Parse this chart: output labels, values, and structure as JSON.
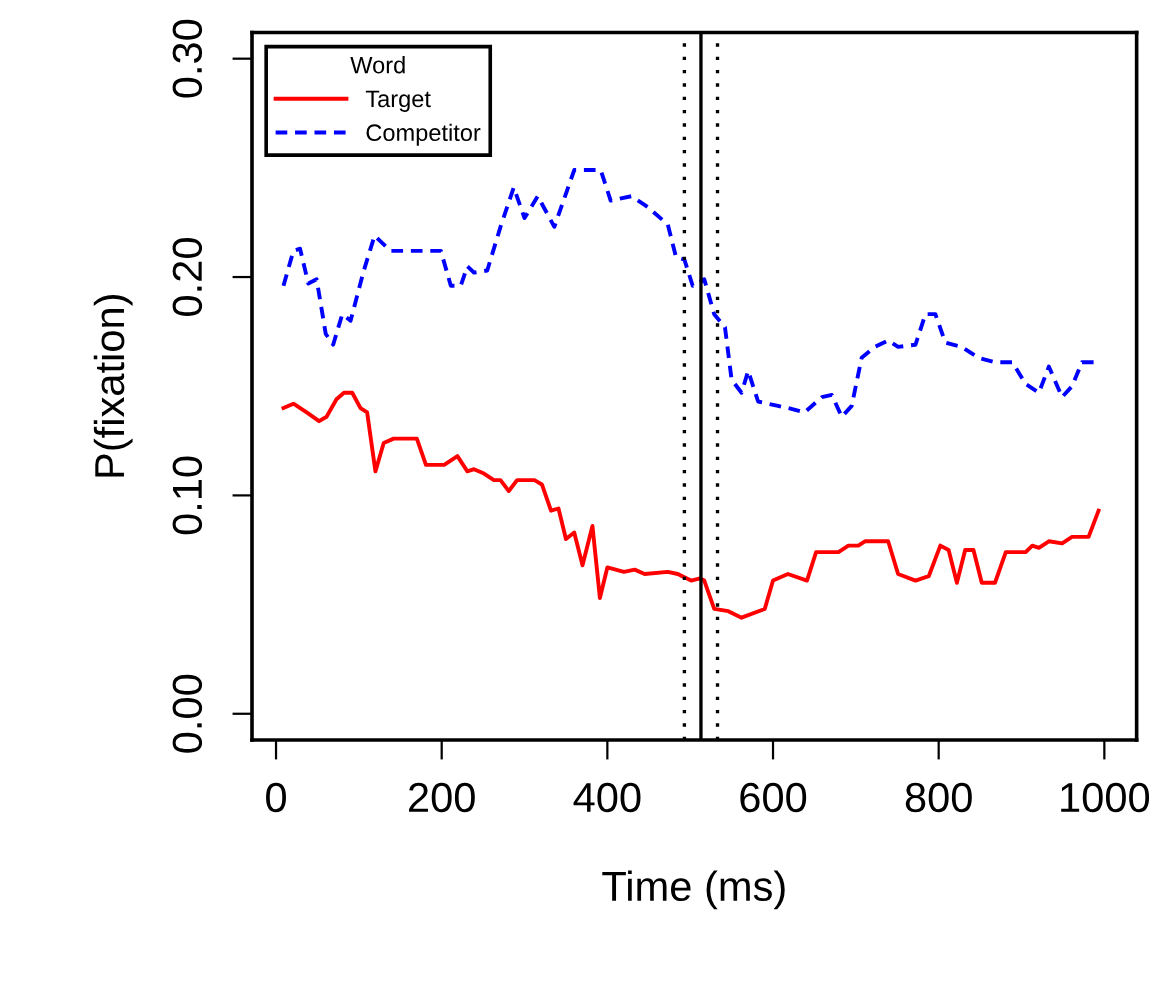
{
  "chart_data": {
    "type": "line",
    "xlabel": "Time (ms)",
    "ylabel": "P(fixation)",
    "legend_title": "Word",
    "legend": "top left",
    "grid": false,
    "xlim": [
      -29,
      1039
    ],
    "xticks": [
      0,
      200,
      400,
      600,
      800,
      1000
    ],
    "ylim": [
      -0.012,
      0.312
    ],
    "yticks": [
      {
        "value": 0,
        "label": "0.00"
      },
      {
        "value": 0.1,
        "label": "0.10"
      },
      {
        "value": 0.2,
        "label": "0.20"
      },
      {
        "value": 0.3,
        "label": "0.30"
      }
    ],
    "ref_lines": [
      {
        "axis": "x",
        "value": 493,
        "line_style": "dotted",
        "color": "#000000"
      },
      {
        "axis": "x",
        "value": 513,
        "line_style": "solid",
        "color": "#000000"
      },
      {
        "axis": "x",
        "value": 533,
        "line_style": "dotted",
        "color": "#000000"
      }
    ],
    "series": [
      {
        "name": "Target",
        "color": "#ff0000",
        "line_style": "solid",
        "x": [
          9,
          21,
          37,
          52,
          61,
          73,
          82,
          92,
          102,
          110,
          120,
          130,
          142,
          170,
          181,
          203,
          219,
          231,
          239,
          251,
          263,
          271,
          281,
          291,
          312,
          321,
          332,
          341,
          350,
          360,
          370,
          382,
          391,
          400,
          420,
          433,
          445,
          473,
          485,
          501,
          512,
          517,
          529,
          546,
          562,
          590,
          600,
          618,
          641,
          652,
          679,
          691,
          703,
          711,
          739,
          751,
          772,
          788,
          802,
          812,
          822,
          832,
          842,
          852,
          868,
          881,
          905,
          913,
          921,
          933,
          949,
          961,
          981,
          993
        ],
        "values": [
          0.14,
          0.142,
          0.138,
          0.134,
          0.136,
          0.144,
          0.147,
          0.147,
          0.14,
          0.138,
          0.111,
          0.124,
          0.126,
          0.126,
          0.114,
          0.114,
          0.118,
          0.111,
          0.112,
          0.11,
          0.107,
          0.107,
          0.102,
          0.107,
          0.107,
          0.105,
          0.093,
          0.094,
          0.08,
          0.083,
          0.068,
          0.086,
          0.053,
          0.067,
          0.065,
          0.066,
          0.064,
          0.065,
          0.064,
          0.061,
          0.062,
          0.061,
          0.048,
          0.047,
          0.044,
          0.048,
          0.061,
          0.064,
          0.061,
          0.074,
          0.074,
          0.077,
          0.077,
          0.079,
          0.079,
          0.064,
          0.061,
          0.063,
          0.077,
          0.075,
          0.06,
          0.075,
          0.075,
          0.06,
          0.06,
          0.074,
          0.074,
          0.077,
          0.076,
          0.079,
          0.078,
          0.081,
          0.081,
          0.093
        ]
      },
      {
        "name": "Competitor",
        "color": "#0000ff",
        "line_style": "dashed",
        "x": [
          9,
          21,
          29,
          39,
          49,
          60,
          69,
          80,
          90,
          106,
          119,
          138,
          199,
          211,
          223,
          231,
          239,
          255,
          271,
          287,
          300,
          316,
          336,
          360,
          392,
          404,
          429,
          449,
          473,
          483,
          493,
          503,
          517,
          529,
          542,
          550,
          562,
          570,
          582,
          606,
          618,
          638,
          659,
          671,
          683,
          695,
          707,
          723,
          739,
          751,
          772,
          784,
          796,
          808,
          828,
          848,
          868,
          889,
          905,
          921,
          933,
          949,
          961,
          973,
          993
        ],
        "values": [
          0.196,
          0.212,
          0.213,
          0.197,
          0.199,
          0.174,
          0.169,
          0.183,
          0.18,
          0.203,
          0.219,
          0.212,
          0.212,
          0.196,
          0.196,
          0.205,
          0.202,
          0.203,
          0.223,
          0.241,
          0.227,
          0.237,
          0.223,
          0.249,
          0.249,
          0.235,
          0.237,
          0.232,
          0.224,
          0.209,
          0.208,
          0.196,
          0.199,
          0.183,
          0.177,
          0.153,
          0.147,
          0.157,
          0.143,
          0.141,
          0.14,
          0.138,
          0.145,
          0.146,
          0.136,
          0.141,
          0.163,
          0.168,
          0.171,
          0.168,
          0.169,
          0.183,
          0.183,
          0.17,
          0.168,
          0.163,
          0.161,
          0.161,
          0.151,
          0.147,
          0.159,
          0.145,
          0.15,
          0.161,
          0.161
        ]
      }
    ]
  }
}
